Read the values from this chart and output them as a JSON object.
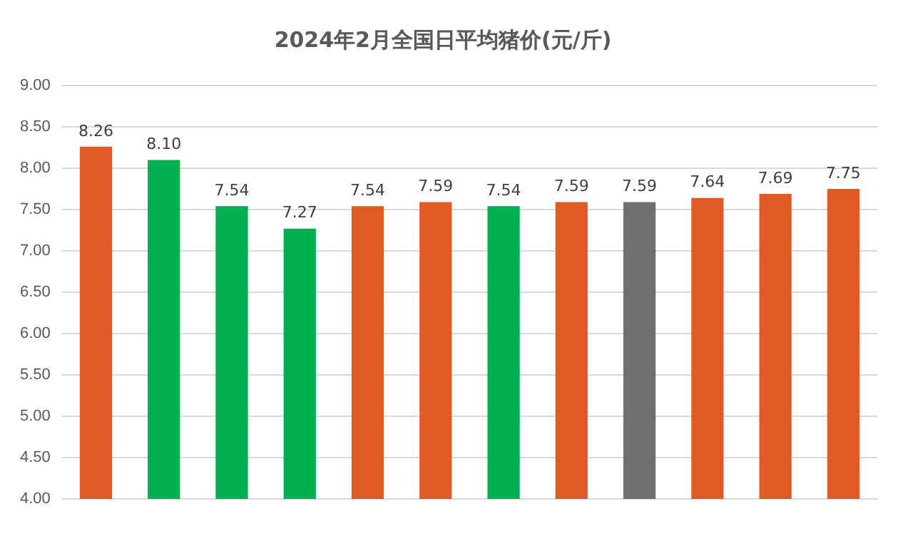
{
  "chart_data": {
    "type": "bar",
    "title": "2024年2月全国日平均猪价(元/斤)",
    "categories": [
      null,
      null,
      null,
      null,
      null,
      null,
      null,
      null,
      null,
      null,
      null,
      null
    ],
    "values": [
      8.26,
      8.1,
      7.54,
      7.27,
      7.54,
      7.59,
      7.54,
      7.59,
      7.59,
      7.64,
      7.69,
      7.75
    ],
    "colors": [
      "#e05a25",
      "#00b050",
      "#00b050",
      "#00b050",
      "#e05a25",
      "#e05a25",
      "#00b050",
      "#e05a25",
      "#707070",
      "#e05a25",
      "#e05a25",
      "#e05a25"
    ],
    "ylim": [
      4,
      9
    ],
    "yticks": [
      {
        "value": 4,
        "label": "4.00"
      },
      {
        "value": 4.5,
        "label": "4.50"
      },
      {
        "value": 5,
        "label": "5.00"
      },
      {
        "value": 5.5,
        "label": "5.50"
      },
      {
        "value": 6,
        "label": "6.00"
      },
      {
        "value": 6.5,
        "label": "6.50"
      },
      {
        "value": 7,
        "label": "7.00"
      },
      {
        "value": 7.5,
        "label": "7.50"
      },
      {
        "value": 8,
        "label": "8.00"
      },
      {
        "value": 8.5,
        "label": "8.50"
      },
      {
        "value": 9,
        "label": "9.00"
      }
    ],
    "grid": "y",
    "value_labels": [
      "8.26",
      "8.10",
      "7.54",
      "7.27",
      "7.54",
      "7.59",
      "7.54",
      "7.59",
      "7.59",
      "7.64",
      "7.69",
      "7.75"
    ]
  }
}
